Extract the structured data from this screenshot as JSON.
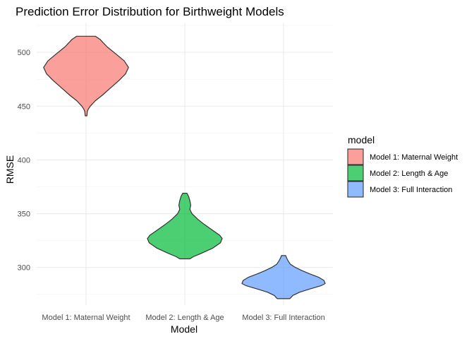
{
  "chart_data": {
    "type": "violin",
    "title": "Prediction Error Distribution for Birthweight Models",
    "xlabel": "Model",
    "ylabel": "RMSE",
    "ylim": [
      265,
      527
    ],
    "yticks": [
      300,
      350,
      400,
      450,
      500
    ],
    "grid": true,
    "legend": {
      "title": "model",
      "position": "right"
    },
    "categories": [
      "Model 1: Maternal Weight",
      "Model 2: Length & Age",
      "Model 3: Full Interaction"
    ],
    "series": [
      {
        "name": "Model 1: Maternal Weight",
        "color": "#F8766D",
        "min": 441,
        "max": 515,
        "profile": [
          [
            515,
            0.22
          ],
          [
            512,
            0.33
          ],
          [
            505,
            0.5
          ],
          [
            498,
            0.72
          ],
          [
            492,
            0.9
          ],
          [
            486,
            1.0
          ],
          [
            480,
            0.93
          ],
          [
            474,
            0.78
          ],
          [
            466,
            0.55
          ],
          [
            460,
            0.38
          ],
          [
            455,
            0.22
          ],
          [
            450,
            0.1
          ],
          [
            447,
            0.05
          ],
          [
            445,
            0.03
          ],
          [
            441,
            0.02
          ]
        ]
      },
      {
        "name": "Model 2: Length & Age",
        "color": "#00BA38",
        "min": 308,
        "max": 369,
        "profile": [
          [
            369,
            0.05
          ],
          [
            366,
            0.09
          ],
          [
            362,
            0.12
          ],
          [
            358,
            0.14
          ],
          [
            354,
            0.12
          ],
          [
            350,
            0.17
          ],
          [
            345,
            0.3
          ],
          [
            340,
            0.46
          ],
          [
            335,
            0.64
          ],
          [
            330,
            0.82
          ],
          [
            327,
            0.88
          ],
          [
            323,
            0.84
          ],
          [
            318,
            0.66
          ],
          [
            313,
            0.38
          ],
          [
            310,
            0.2
          ],
          [
            308,
            0.12
          ]
        ]
      },
      {
        "name": "Model 3: Full Interaction",
        "color": "#619CFF",
        "min": 271,
        "max": 311,
        "profile": [
          [
            311,
            0.05
          ],
          [
            309,
            0.07
          ],
          [
            306,
            0.11
          ],
          [
            303,
            0.16
          ],
          [
            300,
            0.28
          ],
          [
            297,
            0.44
          ],
          [
            294,
            0.62
          ],
          [
            291,
            0.82
          ],
          [
            288,
            0.95
          ],
          [
            285,
            0.98
          ],
          [
            283,
            0.88
          ],
          [
            280,
            0.62
          ],
          [
            277,
            0.38
          ],
          [
            274,
            0.22
          ],
          [
            271,
            0.15
          ]
        ]
      }
    ]
  }
}
